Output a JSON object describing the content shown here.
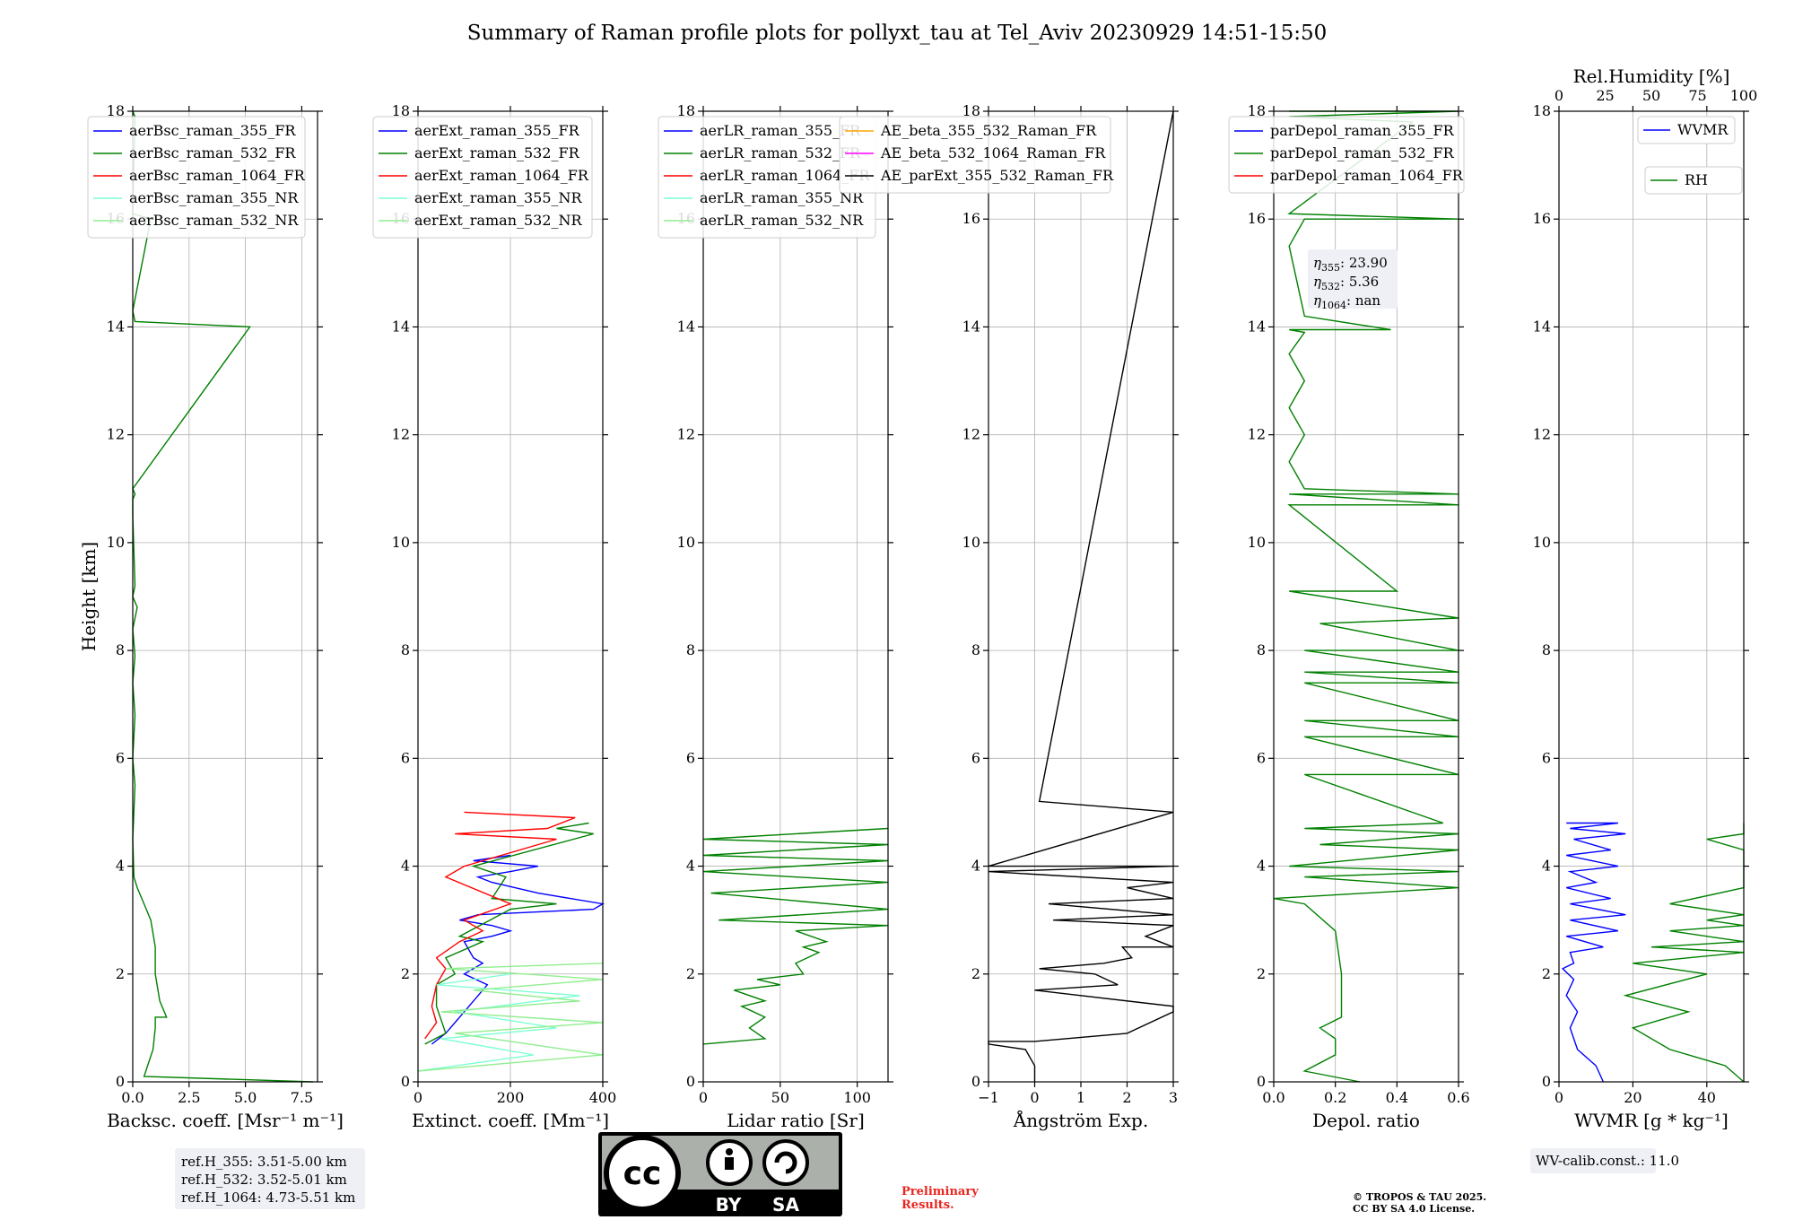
{
  "title": "Summary of Raman profile plots for pollyxt_tau at Tel_Aviv 20230929 14:51-15:50",
  "colors": {
    "blue": "#0000ff",
    "green": "#008000",
    "red": "#ff0000",
    "cyan": "#7fffd4",
    "lightgreen": "#90ee90",
    "orange": "#ffa500",
    "magenta": "#ff00ff",
    "black": "#000000"
  },
  "chart_data": [
    {
      "type": "line",
      "xlabel": "Backsc. coeff. [Msr⁻¹ m⁻¹]",
      "ylabel": "Height [km]",
      "xlim": [
        0,
        8.2
      ],
      "ylim": [
        0,
        18
      ],
      "xticks": [
        0,
        2.5,
        5,
        7.5
      ],
      "xticklabels": [
        "0.0",
        "2.5",
        "5.0",
        "7.5"
      ],
      "yticks": [
        0,
        2,
        4,
        6,
        8,
        10,
        12,
        14,
        16,
        18
      ],
      "legend": "top-right",
      "series": [
        {
          "name": "aerBsc_raman_355_FR",
          "color": "blue"
        },
        {
          "name": "aerBsc_raman_532_FR",
          "color": "green",
          "x": [
            8,
            0.5,
            0.9,
            1.0,
            1.0,
            1.5,
            1.2,
            1.0,
            1.0,
            0.8,
            0.5,
            0.2,
            0.05,
            0.0,
            0.1,
            0.0,
            0.1,
            0.0,
            0.1,
            0.0,
            0.2,
            0.0,
            0.1,
            0.0,
            0.0,
            0.1,
            0.0,
            5.2,
            0.1,
            0.0,
            0.8,
            0.0,
            0.1,
            0.0
          ],
          "y": [
            0,
            0.1,
            0.6,
            1.0,
            1.2,
            1.2,
            1.5,
            2.0,
            2.5,
            3.0,
            3.3,
            3.6,
            3.8,
            4.5,
            5.5,
            6.0,
            6.8,
            7.4,
            7.9,
            8.4,
            8.8,
            9.0,
            9.2,
            10.5,
            10.8,
            10.9,
            11.0,
            14.0,
            14.1,
            14.3,
            16.0,
            16.1,
            17.9,
            18.0
          ]
        },
        {
          "name": "aerBsc_raman_1064_FR",
          "color": "red"
        },
        {
          "name": "aerBsc_raman_355_NR",
          "color": "cyan"
        },
        {
          "name": "aerBsc_raman_532_NR",
          "color": "lightgreen"
        }
      ]
    },
    {
      "type": "line",
      "xlabel": "Extinct. coeff. [Mm⁻¹]",
      "ylabel": "",
      "xlim": [
        0,
        400
      ],
      "ylim": [
        0,
        18
      ],
      "xticks": [
        0,
        200,
        400
      ],
      "xticklabels": [
        "0",
        "200",
        "400"
      ],
      "yticks": [
        0,
        2,
        4,
        6,
        8,
        10,
        12,
        14,
        16,
        18
      ],
      "legend": "top-right",
      "series": [
        {
          "name": "aerExt_raman_355_FR",
          "color": "blue",
          "x": [
            30,
            60,
            90,
            150,
            100,
            140,
            120,
            100,
            160,
            200,
            160,
            90,
            130,
            380,
            420,
            260,
            160,
            130,
            200,
            260,
            120,
            200
          ],
          "y": [
            0.7,
            0.9,
            1.2,
            1.8,
            2.0,
            2.2,
            2.3,
            2.6,
            2.7,
            2.8,
            2.9,
            3.0,
            3.1,
            3.2,
            3.3,
            3.5,
            3.7,
            3.8,
            3.9,
            4.0,
            4.1,
            4.2
          ]
        },
        {
          "name": "aerExt_raman_532_FR",
          "color": "green",
          "x": [
            15,
            60,
            40,
            40,
            80,
            60,
            140,
            90,
            200,
            300,
            160,
            190,
            120,
            380,
            300,
            370
          ],
          "y": [
            0.7,
            0.9,
            1.4,
            1.8,
            2.0,
            2.3,
            2.6,
            2.7,
            3.2,
            3.3,
            3.4,
            3.8,
            4.0,
            4.6,
            4.7,
            4.8
          ]
        },
        {
          "name": "aerExt_raman_1064_FR",
          "color": "red",
          "x": [
            15,
            40,
            30,
            40,
            60,
            40,
            90,
            140,
            100,
            200,
            60,
            100,
            300,
            80,
            280,
            340,
            100
          ],
          "y": [
            0.8,
            1.1,
            1.4,
            1.8,
            2.1,
            2.3,
            2.6,
            2.8,
            3.0,
            3.3,
            3.8,
            4.0,
            4.5,
            4.6,
            4.7,
            4.9,
            5.0
          ]
        },
        {
          "name": "aerExt_raman_355_NR",
          "color": "cyan",
          "x": [
            0,
            250,
            50,
            300,
            80,
            350,
            40,
            200
          ],
          "y": [
            0.2,
            0.5,
            0.8,
            1.0,
            1.3,
            1.6,
            1.8,
            2.0
          ]
        },
        {
          "name": "aerExt_raman_532_NR",
          "color": "lightgreen",
          "x": [
            0,
            400,
            80,
            400,
            50,
            350,
            120,
            400,
            60,
            400
          ],
          "y": [
            0.2,
            0.5,
            0.9,
            1.1,
            1.3,
            1.5,
            1.7,
            1.9,
            2.1,
            2.2
          ]
        }
      ]
    },
    {
      "type": "line",
      "xlabel": "Lidar ratio [Sr]",
      "ylabel": "",
      "xlim": [
        0,
        120
      ],
      "ylim": [
        0,
        18
      ],
      "xticks": [
        0,
        50,
        100
      ],
      "xticklabels": [
        "0",
        "50",
        "100"
      ],
      "yticks": [
        0,
        2,
        4,
        6,
        8,
        10,
        12,
        14,
        16,
        18
      ],
      "legend": "top-right",
      "series": [
        {
          "name": "aerLR_raman_355_FR",
          "color": "blue"
        },
        {
          "name": "aerLR_raman_532_FR",
          "color": "green",
          "x": [
            0,
            40,
            30,
            40,
            25,
            40,
            20,
            50,
            35,
            65,
            60,
            75,
            65,
            80,
            60,
            120,
            10,
            120,
            5,
            120,
            0,
            120,
            0,
            120,
            0,
            120
          ],
          "y": [
            0.7,
            0.8,
            1.0,
            1.2,
            1.4,
            1.5,
            1.7,
            1.8,
            1.9,
            2.0,
            2.2,
            2.4,
            2.5,
            2.6,
            2.8,
            2.9,
            3.0,
            3.2,
            3.5,
            3.7,
            3.9,
            4.1,
            4.2,
            4.4,
            4.5,
            4.7
          ]
        },
        {
          "name": "aerLR_raman_1064_FR",
          "color": "red"
        },
        {
          "name": "aerLR_raman_355_NR",
          "color": "cyan"
        },
        {
          "name": "aerLR_raman_532_NR",
          "color": "lightgreen"
        }
      ]
    },
    {
      "type": "line",
      "xlabel": "Ångström Exp.",
      "ylabel": "",
      "xlim": [
        -1,
        3
      ],
      "ylim": [
        0,
        18
      ],
      "xticks": [
        -1,
        0,
        1,
        2,
        3
      ],
      "xticklabels": [
        "−1",
        "0",
        "1",
        "2",
        "3"
      ],
      "yticks": [
        0,
        2,
        4,
        6,
        8,
        10,
        12,
        14,
        16,
        18
      ],
      "legend": "top-right",
      "series": [
        {
          "name": "AE_beta_355_532_Raman_FR",
          "color": "orange"
        },
        {
          "name": "AE_beta_532_1064_Raman_FR",
          "color": "magenta"
        },
        {
          "name": "AE_parExt_355_532_Raman_FR",
          "color": "black",
          "x": [
            0,
            0,
            -0.2,
            -1,
            -1,
            0,
            2,
            3,
            3,
            1,
            0,
            1.8,
            1.3,
            0.1,
            1.5,
            2.1,
            1.9,
            3,
            2.4,
            3,
            0.4,
            3,
            0.3,
            3,
            2.0,
            3,
            -1,
            3,
            -1,
            3,
            -1,
            3,
            -1,
            3,
            0.1,
            3
          ],
          "y": [
            0,
            0.3,
            0.6,
            0.7,
            0.75,
            0.75,
            0.9,
            1.3,
            1.4,
            1.6,
            1.7,
            1.8,
            2.0,
            2.1,
            2.2,
            2.3,
            2.5,
            2.5,
            2.7,
            2.9,
            3.0,
            3.1,
            3.3,
            3.4,
            3.6,
            3.7,
            3.9,
            4.0,
            4.0,
            4.0,
            4.0,
            4.0,
            4.0,
            5.0,
            5.2,
            18
          ]
        }
      ]
    },
    {
      "type": "line",
      "xlabel": "Depol. ratio",
      "ylabel": "",
      "xlim": [
        0,
        0.6
      ],
      "ylim": [
        0,
        18
      ],
      "xticks": [
        0,
        0.2,
        0.4,
        0.6
      ],
      "xticklabels": [
        "0.0",
        "0.2",
        "0.4",
        "0.6"
      ],
      "yticks": [
        0,
        2,
        4,
        6,
        8,
        10,
        12,
        14,
        16,
        18
      ],
      "legend": "top-right",
      "annotation": {
        "eta355": "23.90",
        "eta532": "5.36",
        "eta1064": "nan"
      },
      "series": [
        {
          "name": "parDepol_raman_355_FR",
          "color": "blue"
        },
        {
          "name": "parDepol_raman_532_FR",
          "color": "green",
          "x": [
            0.28,
            0.1,
            0.2,
            0.2,
            0.15,
            0.22,
            0.22,
            0.2,
            0.1,
            0.0,
            0.6,
            0.1,
            0.6,
            0.05,
            0.6,
            0.15,
            0.6,
            0.1,
            0.55,
            0.1,
            0.6,
            0.1,
            0.6,
            0.1,
            0.6,
            0.1,
            0.6,
            0.1,
            0.6,
            0.1,
            0.6,
            0.15,
            0.6,
            0.05,
            0.4,
            0.05,
            0.6,
            0.05,
            0.6,
            0.1,
            0.05,
            0.1,
            0.05,
            0.1,
            0.05,
            0.1,
            0.05,
            0.38,
            0.1,
            0.05,
            0.1,
            0.6,
            0.05,
            0.45,
            0.05,
            0.6,
            0.05
          ],
          "y": [
            0,
            0.2,
            0.5,
            0.8,
            1.0,
            1.2,
            2.0,
            2.8,
            3.3,
            3.4,
            3.6,
            3.8,
            3.9,
            4.0,
            4.3,
            4.4,
            4.6,
            4.7,
            4.8,
            5.7,
            5.7,
            6.4,
            6.4,
            6.7,
            6.7,
            7.4,
            7.4,
            7.6,
            7.6,
            8.0,
            8.0,
            8.5,
            8.6,
            9.1,
            9.1,
            10.7,
            10.7,
            10.9,
            10.9,
            11.0,
            11.5,
            12.0,
            12.5,
            13.0,
            13.5,
            13.9,
            13.95,
            13.95,
            14.2,
            15.5,
            16.0,
            16.0,
            16.1,
            17.8,
            17.9,
            18.0,
            18.0
          ]
        },
        {
          "name": "parDepol_raman_1064_FR",
          "color": "red"
        }
      ]
    },
    {
      "type": "line",
      "xlabel": "WVMR [g * kg⁻¹]",
      "ylabel": "",
      "xlim": [
        0,
        50
      ],
      "ylim": [
        0,
        18
      ],
      "xticks": [
        0,
        20,
        40
      ],
      "xticklabels": [
        "0",
        "20",
        "40"
      ],
      "x2label": "Rel.Humidity [%]",
      "x2lim": [
        0,
        100
      ],
      "x2ticks": [
        0,
        25,
        50,
        75,
        100
      ],
      "x2ticklabels": [
        "0",
        "25",
        "50",
        "75",
        "100"
      ],
      "yticks": [
        0,
        2,
        4,
        6,
        8,
        10,
        12,
        14,
        16,
        18
      ],
      "legend": "top-right",
      "series": [
        {
          "name": "WVMR",
          "color": "blue",
          "x": [
            12,
            10,
            5,
            3,
            5,
            2,
            4,
            1,
            4,
            3,
            12,
            2,
            16,
            3,
            18,
            3,
            14,
            2,
            10,
            3,
            16,
            2,
            14,
            4,
            18,
            3,
            16,
            2
          ],
          "y": [
            0,
            0.3,
            0.6,
            1.0,
            1.3,
            1.6,
            1.9,
            2.1,
            2.2,
            2.4,
            2.5,
            2.7,
            2.8,
            3.0,
            3.1,
            3.3,
            3.4,
            3.6,
            3.7,
            3.9,
            4.0,
            4.2,
            4.3,
            4.5,
            4.6,
            4.7,
            4.8,
            4.8
          ]
        },
        {
          "name": "RH",
          "color": "green",
          "x": [
            55,
            45,
            30,
            20,
            35,
            18,
            40,
            20,
            60,
            25,
            75,
            30,
            100,
            40,
            100,
            30,
            100,
            60,
            100,
            50,
            90,
            40,
            100,
            60,
            100
          ],
          "y": [
            0,
            0.3,
            0.6,
            1.0,
            1.3,
            1.6,
            2.0,
            2.2,
            2.4,
            2.5,
            2.6,
            2.8,
            2.9,
            3.0,
            3.1,
            3.3,
            3.6,
            3.7,
            3.8,
            4.0,
            4.3,
            4.5,
            4.6,
            4.7,
            4.8
          ]
        }
      ]
    }
  ],
  "refs": {
    "line1": "ref.H_355: 3.51-5.00 km",
    "line2": "ref.H_532: 3.52-5.01 km",
    "line3": "ref.H_1064: 4.73-5.51 km"
  },
  "wv_calib": "WV-calib.const.: 11.0",
  "license": {
    "by": "BY",
    "sa": "SA",
    "cc": "cc"
  },
  "preliminary": {
    "line1": "Preliminary",
    "line2": "Results."
  },
  "copyright": {
    "line1": "© TROPOS & TAU 2025.",
    "line2": "CC BY SA 4.0 License."
  }
}
